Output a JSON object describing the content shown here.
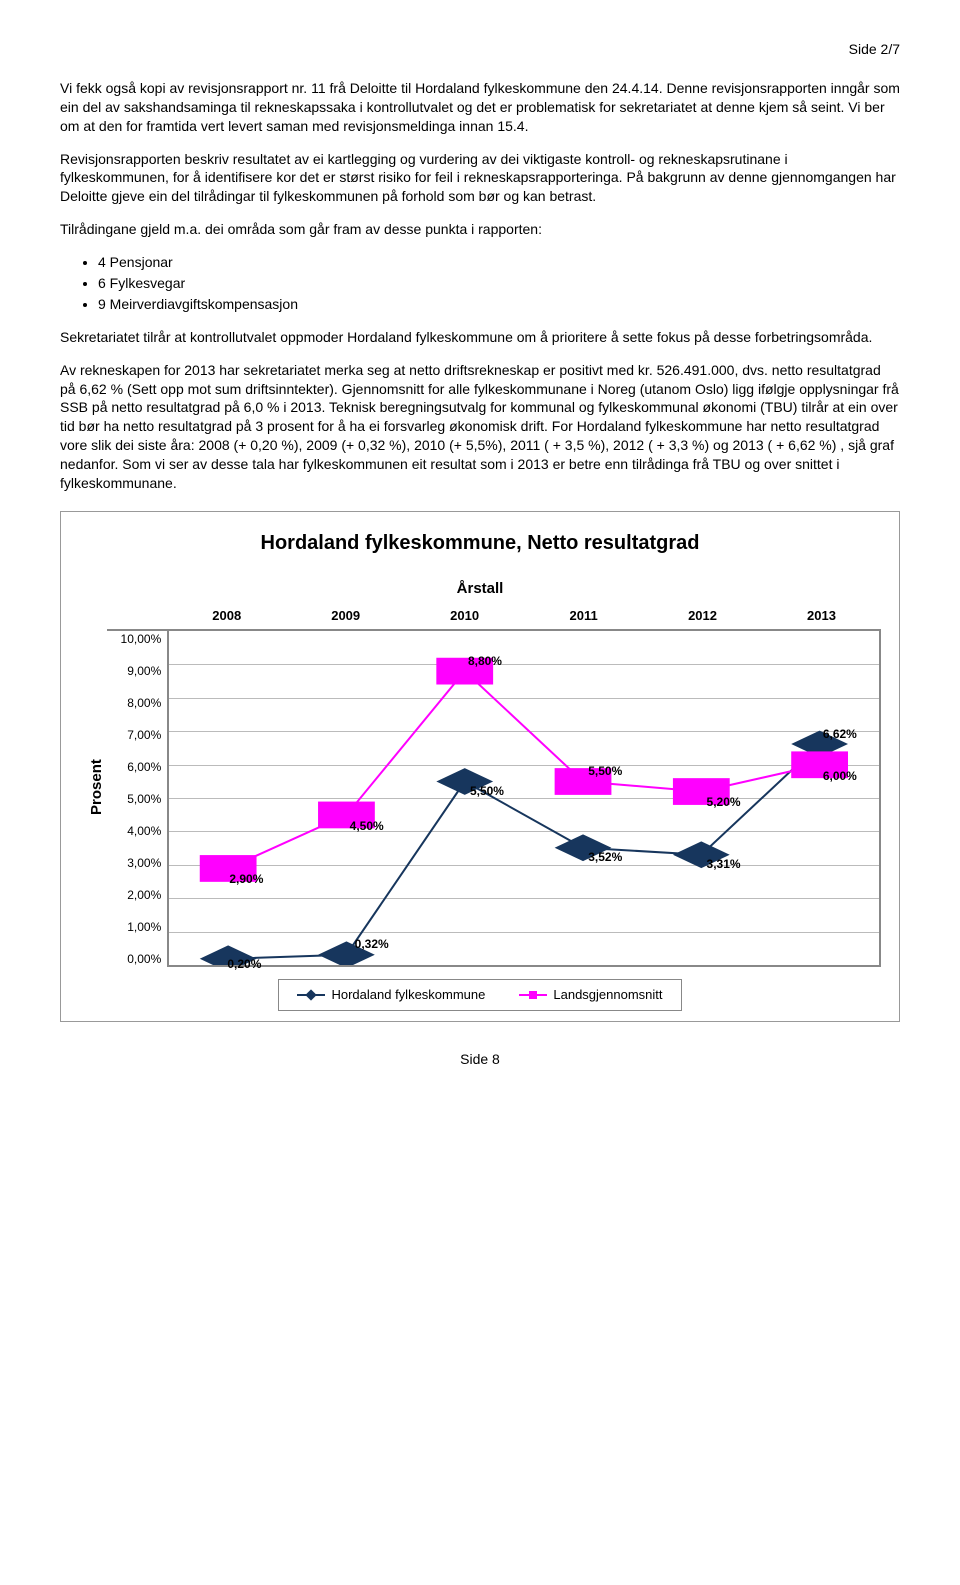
{
  "pageTop": "Side 2/7",
  "pageBottom": "Side 8",
  "paragraphs": [
    "Vi fekk også kopi av revisjonsrapport nr. 11 frå Deloitte til Hordaland fylkeskommune den 24.4.14. Denne revisjonsrapporten inngår som ein del av sakshandsaminga til rekneskapssaka i kontrollutvalet og det er problematisk for sekretariatet at denne kjem så seint. Vi ber om at den for framtida vert levert saman med revisjonsmeldinga innan 15.4.",
    "Revisjonsrapporten beskriv resultatet av ei kartlegging og vurdering av dei viktigaste kontroll- og rekneskapsrutinane i fylkeskommunen, for å identifisere kor det er størst risiko for feil i rekneskapsrapporteringa. På bakgrunn av denne gjennomgangen har Deloitte gjeve ein del tilrådingar til fylkeskommunen på forhold som bør og kan betrast.",
    "Tilrådingane gjeld m.a. dei områda som går fram av desse punkta i rapporten:"
  ],
  "bullets": [
    "4 Pensjonar",
    "6 Fylkesvegar",
    "9 Meirverdiavgiftskompensasjon"
  ],
  "paragraphs2": [
    "Sekretariatet tilrår at kontrollutvalet oppmoder Hordaland fylkeskommune om å prioritere å sette fokus på desse forbetringsområda.",
    "Av rekneskapen for 2013 har sekretariatet merka seg at netto driftsrekneskap er positivt med kr. 526.491.000, dvs. netto resultatgrad på 6,62 % (Sett opp mot sum driftsinntekter). Gjennomsnitt for alle fylkeskommunane i Noreg (utanom Oslo) ligg ifølgje opplysningar frå SSB på netto resultatgrad på 6,0 % i 2013. Teknisk beregningsutvalg for kommunal og fylkeskommunal økonomi (TBU) tilrår at ein over tid bør ha netto resultatgrad på 3 prosent for å ha ei forsvarleg økonomisk drift. For Hordaland fylkeskommune har netto resultatgrad vore slik dei siste åra: 2008 (+ 0,20 %), 2009 (+ 0,32 %), 2010 (+ 5,5%), 2011 ( + 3,5 %), 2012 ( + 3,3 %) og 2013 ( + 6,62 %) , sjå graf nedanfor. Som vi ser av desse tala har fylkeskommunen eit resultat som i 2013 er betre enn tilrådinga frå TBU og over snittet i fylkeskommunane."
  ],
  "chart": {
    "title": "Hordaland fylkeskommune, Netto resultatgrad",
    "xAxisTitle": "Årstall",
    "yAxisTitle": "Prosent",
    "yMin": 0.0,
    "yMax": 10.0,
    "yStep": 1.0,
    "yTickLabels": [
      "10,00%",
      "9,00%",
      "8,00%",
      "7,00%",
      "6,00%",
      "5,00%",
      "4,00%",
      "3,00%",
      "2,00%",
      "1,00%",
      "0,00%"
    ],
    "categories": [
      "2008",
      "2009",
      "2010",
      "2011",
      "2012",
      "2013"
    ],
    "series": [
      {
        "name": "Hordaland fylkeskommune",
        "color": "#17365d",
        "marker": "diamond",
        "values": [
          0.2,
          0.32,
          5.5,
          3.52,
          3.31,
          6.62
        ],
        "labels": [
          "0,20%",
          "0,32%",
          "5,50%",
          "3,52%",
          "3,31%",
          "6,62%"
        ],
        "labelOffsets": [
          {
            "dx": 16,
            "dy": -2
          },
          {
            "dx": 25,
            "dy": -18
          },
          {
            "dx": 22,
            "dy": 2
          },
          {
            "dx": 22,
            "dy": 2
          },
          {
            "dx": 22,
            "dy": 2
          },
          {
            "dx": 20,
            "dy": -18
          }
        ]
      },
      {
        "name": "Landsgjennomsnitt",
        "color": "#ff00ff",
        "marker": "square",
        "values": [
          2.9,
          4.5,
          8.8,
          5.5,
          5.2,
          6.0
        ],
        "labels": [
          "2,90%",
          "4,50%",
          "8,80%",
          "5,50%",
          "5,20%",
          "6,00%"
        ],
        "labelOffsets": [
          {
            "dx": 18,
            "dy": 3
          },
          {
            "dx": 20,
            "dy": 3
          },
          {
            "dx": 20,
            "dy": -18
          },
          {
            "dx": 22,
            "dy": -18
          },
          {
            "dx": 22,
            "dy": 3
          },
          {
            "dx": 20,
            "dy": 3
          }
        ]
      }
    ],
    "gridColor": "#bbbbbb",
    "background": "#ffffff",
    "lineWidth": 2,
    "markerSize": 8
  }
}
